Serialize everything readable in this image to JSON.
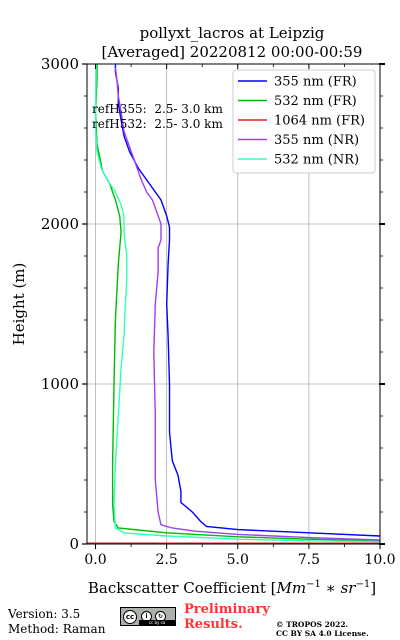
{
  "chart_data": {
    "type": "line",
    "title": "pollyxt_lacros at Leipzig",
    "subtitle": "[Averaged] 20220812 00:00-00:59",
    "xlabel": "Backscatter Coefficient [Mm⁻¹ * sr⁻¹]",
    "xlabel_main": "Backscatter Coefficient",
    "ylabel": "Height (m)",
    "xlim": [
      -0.3,
      10
    ],
    "ylim": [
      0,
      3000
    ],
    "xticks": [
      "0.0",
      "2.5",
      "5.0",
      "7.5",
      "10.0"
    ],
    "xtick_values": [
      0,
      2.5,
      5,
      7.5,
      10
    ],
    "yticks": [
      "0",
      "1000",
      "2000",
      "3000"
    ],
    "ytick_values": [
      0,
      1000,
      2000,
      3000
    ],
    "grid": true,
    "legend_position": "top-right",
    "annotations": [
      "refH355:  2.5- 3.0 km",
      "refH532:  2.5- 3.0 km"
    ],
    "series": [
      {
        "name": "355 nm (FR)",
        "color": "#0000ff",
        "points": [
          [
            10.5,
            30
          ],
          [
            10.0,
            50
          ],
          [
            7.5,
            70
          ],
          [
            5.0,
            90
          ],
          [
            3.9,
            110
          ],
          [
            3.7,
            140
          ],
          [
            3.4,
            200
          ],
          [
            3.0,
            260
          ],
          [
            3.0,
            330
          ],
          [
            2.9,
            430
          ],
          [
            2.7,
            520
          ],
          [
            2.6,
            700
          ],
          [
            2.6,
            1000
          ],
          [
            2.55,
            1300
          ],
          [
            2.5,
            1500
          ],
          [
            2.55,
            1750
          ],
          [
            2.6,
            1900
          ],
          [
            2.6,
            1980
          ],
          [
            2.5,
            2050
          ],
          [
            2.3,
            2150
          ],
          [
            1.9,
            2250
          ],
          [
            1.5,
            2350
          ],
          [
            1.2,
            2450
          ],
          [
            1.0,
            2550
          ],
          [
            0.9,
            2650
          ],
          [
            0.8,
            2750
          ],
          [
            0.8,
            2850
          ],
          [
            0.7,
            2950
          ],
          [
            0.7,
            3000
          ]
        ]
      },
      {
        "name": "532 nm (FR)",
        "color": "#00bb00",
        "points": [
          [
            10.2,
            20
          ],
          [
            7.5,
            30
          ],
          [
            5.0,
            45
          ],
          [
            2.5,
            70
          ],
          [
            0.8,
            100
          ],
          [
            0.65,
            140
          ],
          [
            0.6,
            250
          ],
          [
            0.6,
            500
          ],
          [
            0.65,
            1000
          ],
          [
            0.7,
            1400
          ],
          [
            0.8,
            1750
          ],
          [
            0.9,
            1950
          ],
          [
            0.85,
            2050
          ],
          [
            0.7,
            2150
          ],
          [
            0.5,
            2250
          ],
          [
            0.25,
            2330
          ],
          [
            0.05,
            2500
          ],
          [
            0.0,
            2700
          ],
          [
            0.05,
            2900
          ],
          [
            0.05,
            3000
          ]
        ]
      },
      {
        "name": "1064 nm (FR)",
        "color": "#dd2222",
        "points": [
          [
            -0.3,
            5
          ],
          [
            10.0,
            5
          ]
        ]
      },
      {
        "name": "355 nm (NR)",
        "color": "#a040f0",
        "points": [
          [
            10.0,
            25
          ],
          [
            7.5,
            40
          ],
          [
            5.0,
            60
          ],
          [
            3.5,
            80
          ],
          [
            2.7,
            100
          ],
          [
            2.3,
            120
          ],
          [
            2.2,
            200
          ],
          [
            2.1,
            400
          ],
          [
            2.1,
            800
          ],
          [
            2.05,
            1200
          ],
          [
            2.1,
            1500
          ],
          [
            2.2,
            1700
          ],
          [
            2.2,
            1850
          ],
          [
            2.3,
            1900
          ],
          [
            2.3,
            2000
          ],
          [
            2.1,
            2100
          ],
          [
            2.0,
            2150
          ],
          [
            1.8,
            2200
          ],
          [
            1.6,
            2280
          ],
          [
            1.4,
            2380
          ],
          [
            1.2,
            2480
          ],
          [
            1.0,
            2580
          ],
          [
            0.9,
            2700
          ],
          [
            0.8,
            2800
          ],
          [
            0.75,
            2900
          ],
          [
            0.7,
            2980
          ]
        ]
      },
      {
        "name": "532 nm (NR)",
        "color": "#33ffbb",
        "points": [
          [
            10.0,
            15
          ],
          [
            7.5,
            20
          ],
          [
            5.0,
            30
          ],
          [
            2.5,
            50
          ],
          [
            1.0,
            70
          ],
          [
            0.7,
            100
          ],
          [
            0.65,
            250
          ],
          [
            0.7,
            500
          ],
          [
            0.8,
            800
          ],
          [
            0.9,
            1100
          ],
          [
            1.0,
            1300
          ],
          [
            1.05,
            1500
          ],
          [
            1.1,
            1650
          ],
          [
            1.1,
            1800
          ],
          [
            1.0,
            1950
          ],
          [
            1.0,
            2050
          ],
          [
            0.9,
            2120
          ],
          [
            0.7,
            2200
          ],
          [
            0.4,
            2280
          ],
          [
            0.2,
            2350
          ],
          [
            0.05,
            2450
          ],
          [
            0.0,
            2600
          ],
          [
            0.0,
            2750
          ],
          [
            0.02,
            2900
          ],
          [
            0.02,
            3000
          ]
        ]
      }
    ]
  },
  "footer": {
    "version": "Version: 3.5",
    "method": "Method: Raman",
    "preliminary_line1": "Preliminary",
    "preliminary_line2": "Results.",
    "copyright_line1": "© TROPOS 2022.",
    "copyright_line2": "CC BY SA 4.0 License.",
    "license_badge": "cc by sa"
  }
}
